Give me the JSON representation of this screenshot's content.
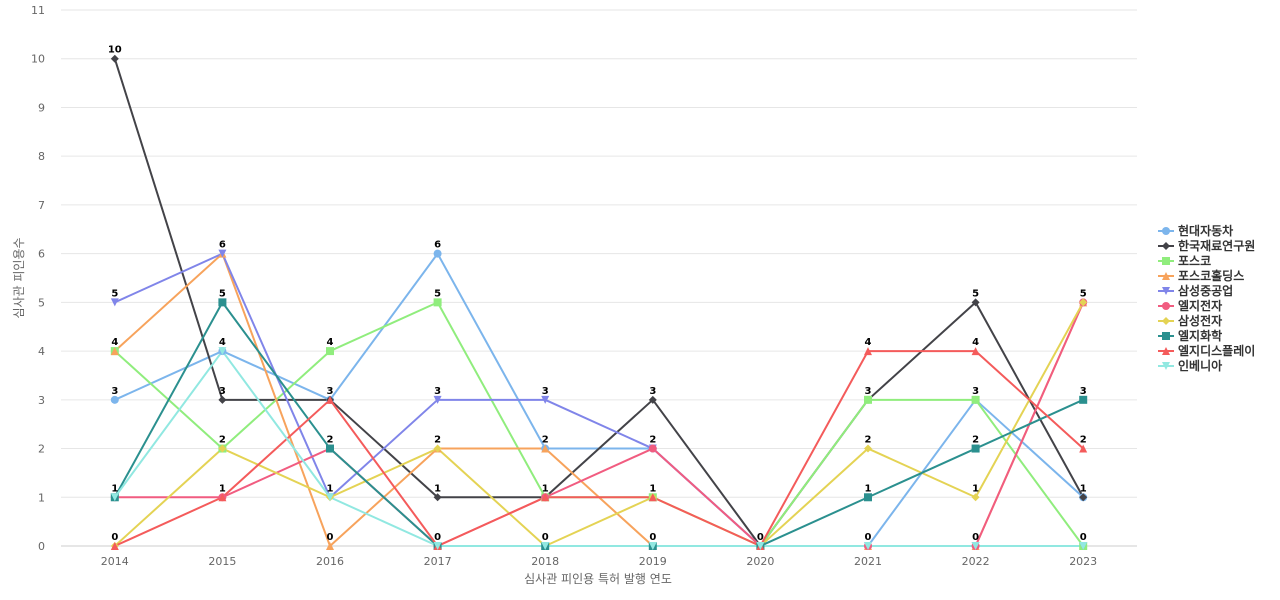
{
  "chart_data": {
    "type": "line",
    "xlabel": "심사관 피인용 특허 발행 연도",
    "ylabel": "심사관 피인용수",
    "x": [
      "2014",
      "2015",
      "2016",
      "2017",
      "2018",
      "2019",
      "2020",
      "2021",
      "2022",
      "2023"
    ],
    "ylim": [
      0,
      11
    ],
    "yticks": [
      "0",
      "1",
      "2",
      "3",
      "4",
      "5",
      "6",
      "7",
      "8",
      "9",
      "10",
      "11"
    ],
    "grid": true,
    "legend_position": "right",
    "series": [
      {
        "name": "현대자동차",
        "color": "#7cb5ec",
        "marker": "circle",
        "values": [
          3,
          4,
          3,
          6,
          2,
          2,
          0,
          0,
          3,
          1
        ]
      },
      {
        "name": "한국재료연구원",
        "color": "#434348",
        "marker": "diamond",
        "values": [
          10,
          3,
          3,
          1,
          1,
          3,
          0,
          3,
          5,
          1
        ]
      },
      {
        "name": "포스코",
        "color": "#90ed7d",
        "marker": "square",
        "values": [
          4,
          2,
          4,
          5,
          1,
          1,
          0,
          3,
          3,
          0
        ]
      },
      {
        "name": "포스코홀딩스",
        "color": "#f7a35c",
        "marker": "triangle",
        "values": [
          4,
          6,
          0,
          2,
          2,
          0,
          0,
          0,
          0,
          5
        ]
      },
      {
        "name": "삼성중공업",
        "color": "#8085e9",
        "marker": "triangle-down",
        "values": [
          5,
          6,
          1,
          3,
          3,
          2,
          0,
          0,
          0,
          0
        ]
      },
      {
        "name": "엘지전자",
        "color": "#f15c80",
        "marker": "circle",
        "values": [
          1,
          1,
          2,
          0,
          1,
          2,
          0,
          0,
          0,
          5
        ]
      },
      {
        "name": "삼성전자",
        "color": "#e4d354",
        "marker": "diamond",
        "values": [
          0,
          2,
          1,
          2,
          0,
          1,
          0,
          2,
          1,
          5
        ]
      },
      {
        "name": "엘지화학",
        "color": "#2b908f",
        "marker": "square",
        "values": [
          1,
          5,
          2,
          0,
          0,
          0,
          0,
          1,
          2,
          3
        ]
      },
      {
        "name": "엘지디스플레이",
        "color": "#f45b5b",
        "marker": "triangle",
        "values": [
          0,
          1,
          3,
          0,
          1,
          1,
          0,
          4,
          4,
          2
        ]
      },
      {
        "name": "인베니아",
        "color": "#91e8e1",
        "marker": "triangle-down",
        "values": [
          1,
          4,
          1,
          0,
          0,
          0,
          0,
          0,
          0,
          0
        ]
      }
    ],
    "data_labels": [
      {
        "x": "2014",
        "y": 10
      },
      {
        "x": "2014",
        "y": 5
      },
      {
        "x": "2014",
        "y": 4
      },
      {
        "x": "2014",
        "y": 3
      },
      {
        "x": "2014",
        "y": 1
      },
      {
        "x": "2014",
        "y": 0
      },
      {
        "x": "2015",
        "y": 6
      },
      {
        "x": "2015",
        "y": 5
      },
      {
        "x": "2015",
        "y": 4
      },
      {
        "x": "2015",
        "y": 3
      },
      {
        "x": "2015",
        "y": 2
      },
      {
        "x": "2015",
        "y": 1
      },
      {
        "x": "2016",
        "y": 4
      },
      {
        "x": "2016",
        "y": 3
      },
      {
        "x": "2016",
        "y": 2
      },
      {
        "x": "2016",
        "y": 1
      },
      {
        "x": "2016",
        "y": 0
      },
      {
        "x": "2017",
        "y": 6
      },
      {
        "x": "2017",
        "y": 5
      },
      {
        "x": "2017",
        "y": 3
      },
      {
        "x": "2017",
        "y": 2
      },
      {
        "x": "2017",
        "y": 1
      },
      {
        "x": "2017",
        "y": 0
      },
      {
        "x": "2018",
        "y": 3
      },
      {
        "x": "2018",
        "y": 2
      },
      {
        "x": "2018",
        "y": 1
      },
      {
        "x": "2018",
        "y": 0
      },
      {
        "x": "2019",
        "y": 3
      },
      {
        "x": "2019",
        "y": 2
      },
      {
        "x": "2019",
        "y": 1
      },
      {
        "x": "2019",
        "y": 0
      },
      {
        "x": "2020",
        "y": 0
      },
      {
        "x": "2021",
        "y": 4
      },
      {
        "x": "2021",
        "y": 3
      },
      {
        "x": "2021",
        "y": 2
      },
      {
        "x": "2021",
        "y": 1
      },
      {
        "x": "2021",
        "y": 0
      },
      {
        "x": "2022",
        "y": 5
      },
      {
        "x": "2022",
        "y": 4
      },
      {
        "x": "2022",
        "y": 3
      },
      {
        "x": "2022",
        "y": 2
      },
      {
        "x": "2022",
        "y": 1
      },
      {
        "x": "2022",
        "y": 0
      },
      {
        "x": "2023",
        "y": 5
      },
      {
        "x": "2023",
        "y": 3
      },
      {
        "x": "2023",
        "y": 2
      },
      {
        "x": "2023",
        "y": 1
      },
      {
        "x": "2023",
        "y": 0
      }
    ]
  }
}
